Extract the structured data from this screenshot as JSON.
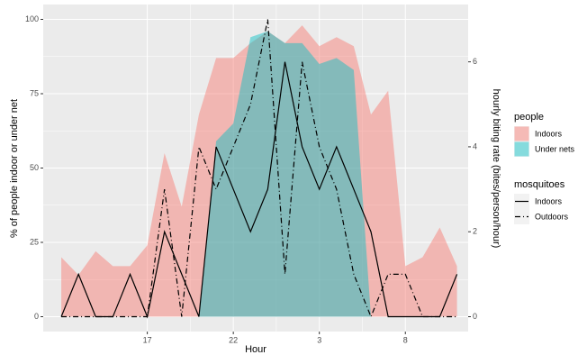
{
  "chart_data": {
    "type": "area",
    "xlabel": "Hour",
    "ylabel": "% of people indoor or under net",
    "y2label": "hourly biting rate (bites/person/hour)",
    "x": [
      12,
      13,
      14,
      15,
      16,
      17,
      18,
      19,
      20,
      21,
      22,
      23,
      24,
      25,
      26,
      27,
      28,
      29,
      30,
      31,
      32,
      33,
      34,
      35
    ],
    "xlim": [
      10.95,
      35.65
    ],
    "xticks": [
      17,
      22,
      {
        "value": 27,
        "label": "3"
      },
      {
        "value": 32,
        "label": "8"
      }
    ],
    "ylim": [
      -5,
      105
    ],
    "yticks": [
      0,
      25,
      50,
      75,
      100
    ],
    "y2lim": [
      -0.35,
      7.35
    ],
    "y2ticks": [
      0,
      2,
      4,
      6
    ],
    "grid": true,
    "legend": "right",
    "groups": [
      {
        "title": "people",
        "type": "area",
        "series": [
          {
            "name": "Indoors",
            "color": "#F8766D",
            "opacity": 0.45,
            "values": [
              20,
              14,
              22,
              17,
              17,
              24,
              55,
              37,
              68,
              87,
              87,
              92,
              96,
              92,
              98,
              91,
              94,
              91,
              68,
              76,
              17,
              20,
              30,
              17
            ]
          },
          {
            "name": "Under nets",
            "color": "#00BFC4",
            "opacity": 0.45,
            "values": [
              0,
              0,
              0,
              0,
              0,
              0,
              0,
              0,
              0,
              59,
              65,
              94,
              96,
              92,
              92,
              85,
              87,
              83,
              0,
              0,
              0,
              0,
              0,
              0
            ]
          }
        ]
      },
      {
        "title": "mosquitoes",
        "type": "line",
        "series": [
          {
            "name": "Indoors",
            "color": "#000000",
            "dash": "solid",
            "axis": "y2",
            "values": [
              0,
              1,
              0,
              0,
              1,
              0,
              2,
              1,
              0,
              4,
              3,
              2,
              3,
              6,
              4,
              3,
              4,
              3,
              2,
              0,
              0,
              0,
              0,
              1
            ]
          },
          {
            "name": "Outdoors",
            "color": "#000000",
            "dash": "dashdot",
            "axis": "y2",
            "values": [
              0,
              0,
              0,
              0,
              0,
              0,
              3,
              0,
              4,
              3,
              4,
              5,
              7,
              1,
              6,
              4,
              3,
              1,
              0,
              1,
              1,
              0,
              0,
              0
            ]
          }
        ]
      }
    ]
  }
}
